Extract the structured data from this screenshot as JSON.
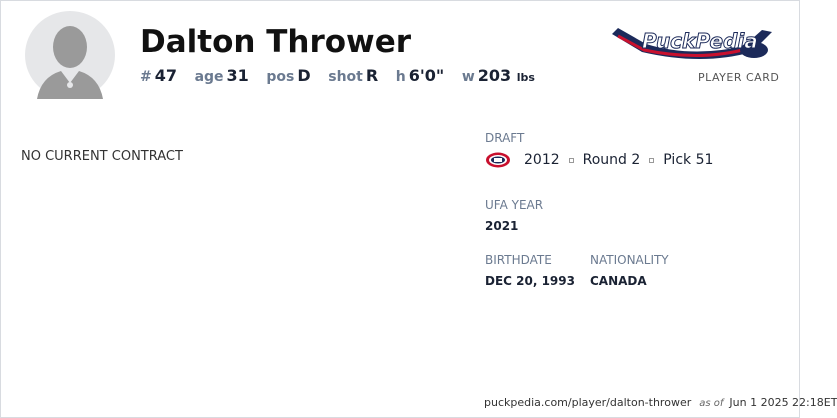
{
  "player": {
    "name": "Dalton Thrower",
    "number": "47",
    "age": "31",
    "pos": "D",
    "shot": "R",
    "height": "6'0\"",
    "weight": "203",
    "weight_unit": "lbs"
  },
  "labels": {
    "number": "#",
    "age": "age",
    "pos": "pos",
    "shot": "shot",
    "height": "h",
    "weight": "w"
  },
  "brand": {
    "logo_text": "PuckPedia",
    "subtitle": "PLAYER CARD",
    "colors": {
      "navy": "#1c2a5a",
      "red": "#c8102e"
    }
  },
  "contract": {
    "status": "NO CURRENT CONTRACT"
  },
  "draft": {
    "label": "DRAFT",
    "team_icon": "montreal-canadiens-logo",
    "year": "2012",
    "round": "Round 2",
    "pick": "Pick 51"
  },
  "ufa": {
    "label": "UFA YEAR",
    "value": "2021"
  },
  "birthdate": {
    "label": "BIRTHDATE",
    "value": "DEC 20, 1993"
  },
  "nationality": {
    "label": "NATIONALITY",
    "value": "CANADA"
  },
  "footer": {
    "url": "puckpedia.com/player/dalton-thrower",
    "as_of": "as of",
    "date": "Jun 1 2025 22:18ET"
  }
}
